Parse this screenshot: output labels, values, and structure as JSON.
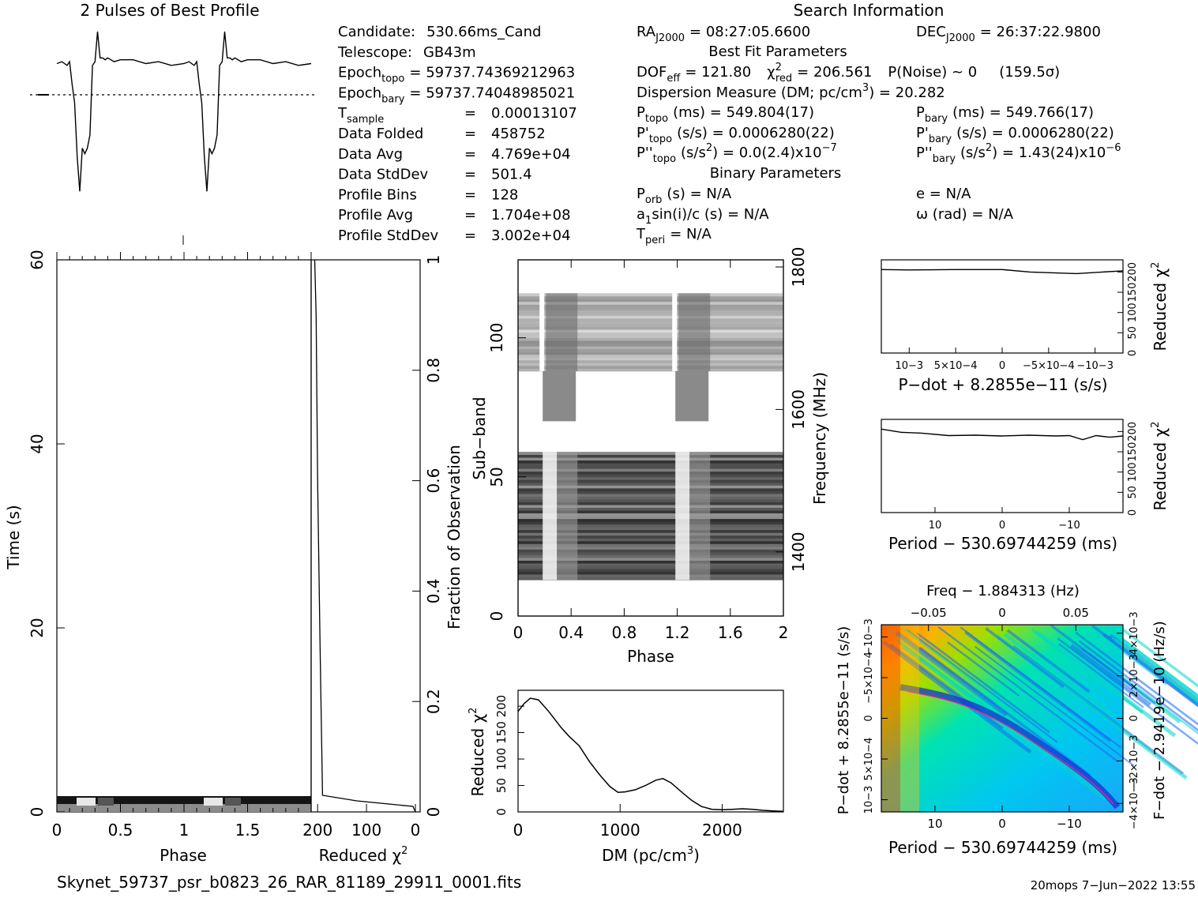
{
  "header": {
    "best_profile_title": "2 Pulses of Best Profile",
    "search_title": "Search Information"
  },
  "info_left": [
    {
      "label": "Candidate:",
      "value": "530.66ms_Cand"
    },
    {
      "label": "Telescope:",
      "value": "GB43m"
    },
    {
      "label": "Epoch",
      "sub": "topo",
      "value": "= 59737.74369212963"
    },
    {
      "label": "Epoch",
      "sub": "bary",
      "value": "= 59737.74048985021"
    },
    {
      "label": "T",
      "sub": "sample",
      "value": "0.00013107"
    },
    {
      "label": "Data Folded",
      "value": "458752"
    },
    {
      "label": "Data Avg",
      "value": "4.769e+04"
    },
    {
      "label": "Data StdDev",
      "value": "501.4"
    },
    {
      "label": "Profile Bins",
      "value": "128"
    },
    {
      "label": "Profile Avg",
      "value": "1.704e+08"
    },
    {
      "label": "Profile StdDev",
      "value": "3.002e+04"
    }
  ],
  "info_mid": {
    "ra": "RA",
    "ra_sub": "J2000",
    "ra_value": "= 08:27:05.6600",
    "best_fit_title": "Best Fit Parameters",
    "dof": "DOF",
    "dof_sub": "eff",
    "dof_value": "= 121.80",
    "chi": "χ",
    "chi_sub": "red",
    "chi_value": "= 206.561",
    "pnoise": "P(Noise) ~ 0",
    "sigma": "(159.5σ)",
    "dm_line": "Dispersion Measure (DM; pc/cm",
    "dm_value": ") = 20.282",
    "ptopo": "P",
    "ptopo_sub": "topo",
    "ptopo_value": "(ms) =  549.804(17)",
    "pdtopo": "P'",
    "pdtopo_value": "(s/s) =  0.0006280(22)",
    "pddtopo": "P''",
    "pddtopo_value": "(s/s",
    "pddtopo_value2": ") = 0.0(2.4)x10",
    "pddtopo_exp": "−7",
    "binary_title": "Binary Parameters",
    "porb": "P",
    "porb_sub": "orb",
    "porb_value": "(s) = N/A",
    "asini": "a",
    "asini_value": "sin(i)/c (s) = N/A",
    "tperi": "T",
    "tperi_sub": "peri",
    "tperi_value": "= N/A"
  },
  "info_right": {
    "dec": "DEC",
    "dec_sub": "J2000",
    "dec_value": "= 26:37:22.9800",
    "pbary": "P",
    "pbary_sub": "bary",
    "pbary_value": "(ms) =  549.766(17)",
    "pdbary": "P'",
    "pdbary_value": "(s/s) =  0.0006280(22)",
    "pddbary": "P''",
    "pddbary_value": "(s/s",
    "pddbary_value2": ") =  1.43(24)x10",
    "pddbary_exp": "−6",
    "ecc": "e = N/A",
    "omega": "ω (rad) = N/A"
  },
  "footer": {
    "filename": "Skynet_59737_psr_b0823_26_RAR_81189_29911_0001.fits",
    "stamp": "20mops  7−Jun−2022 13:55"
  },
  "chart_data": [
    {
      "type": "line",
      "name": "profile",
      "title": "2 Pulses of Best Profile",
      "x": [
        0,
        0.04,
        0.08,
        0.1,
        0.12,
        0.14,
        0.16,
        0.18,
        0.2,
        0.22,
        0.24,
        0.26,
        0.28,
        0.3,
        0.32,
        0.34,
        0.36,
        0.38,
        0.4,
        0.45,
        0.5,
        0.6,
        0.7,
        0.8,
        0.9,
        1.0,
        1.04,
        1.08,
        1.1,
        1.12,
        1.14,
        1.16,
        1.18,
        1.2,
        1.22,
        1.24,
        1.26,
        1.28,
        1.3,
        1.32,
        1.34,
        1.36,
        1.38,
        1.4,
        1.45,
        1.5,
        1.6,
        1.7,
        1.8,
        1.9,
        2.0
      ],
      "y": [
        0.83,
        0.84,
        0.82,
        0.84,
        0.72,
        0.62,
        0.33,
        0.15,
        0.38,
        0.35,
        0.38,
        0.45,
        0.82,
        0.84,
        1.0,
        0.86,
        0.86,
        0.85,
        0.86,
        0.84,
        0.85,
        0.85,
        0.83,
        0.84,
        0.82,
        0.83,
        0.84,
        0.82,
        0.84,
        0.72,
        0.62,
        0.33,
        0.15,
        0.38,
        0.35,
        0.38,
        0.45,
        0.82,
        0.84,
        1.0,
        0.86,
        0.86,
        0.85,
        0.86,
        0.84,
        0.85,
        0.85,
        0.83,
        0.84,
        0.82,
        0.83
      ]
    },
    {
      "type": "heatmap",
      "name": "time-phase",
      "xlabel": "Phase",
      "ylabel": "Time (s)",
      "xlim": [
        0,
        2
      ],
      "ylim": [
        0,
        60
      ],
      "x_ticks": [
        "0",
        "0.5",
        "1",
        "1.5"
      ],
      "y_ticks": [
        "0",
        "20",
        "40",
        "60"
      ]
    },
    {
      "type": "line",
      "name": "chi-vs-time",
      "xlabel": "Reduced χ",
      "xlabel_exp": "2",
      "ylabel": "Fraction of Observation",
      "x_ticks": [
        "200",
        "100",
        "0"
      ],
      "y_ticks": [
        "0",
        "0.2",
        "0.4",
        "0.6",
        "0.8",
        "1"
      ],
      "x": [
        0,
        5,
        120,
        190,
        195,
        200,
        203,
        206
      ],
      "y": [
        0,
        0.01,
        0.02,
        0.03,
        0.3,
        0.6,
        0.9,
        1.0
      ]
    },
    {
      "type": "heatmap",
      "name": "subband-phase",
      "xlabel": "Phase",
      "ylabel": "Sub−band",
      "y2label": "Frequency (MHz)",
      "xlim": [
        0,
        2
      ],
      "ylim": [
        0,
        128
      ],
      "x_ticks": [
        "0",
        "0.4",
        "0.8",
        "1.2",
        "1.6",
        "2"
      ],
      "y_ticks": [
        "0",
        "50",
        "100"
      ],
      "y2_ticks": [
        "1400",
        "1600",
        "1800"
      ]
    },
    {
      "type": "line",
      "name": "dm-chi",
      "xlabel": "DM (pc/cm",
      "xlabel_exp": "3",
      "xlabel_end": ")",
      "ylabel": "Reduced χ",
      "ylabel_exp": "2",
      "xlim": [
        0,
        2600
      ],
      "ylim": [
        0,
        230
      ],
      "x_ticks": [
        "0",
        "1000",
        "2000"
      ],
      "y_ticks": [
        "0",
        "50",
        "100",
        "150",
        "200"
      ],
      "x": [
        0,
        60,
        120,
        200,
        300,
        420,
        500,
        600,
        700,
        800,
        900,
        980,
        1050,
        1150,
        1250,
        1350,
        1420,
        1500,
        1600,
        1700,
        1800,
        1900,
        2000,
        2100,
        2200,
        2300,
        2400,
        2500,
        2600
      ],
      "y": [
        190,
        205,
        215,
        212,
        190,
        160,
        143,
        125,
        95,
        70,
        48,
        37,
        38,
        42,
        50,
        60,
        63,
        55,
        38,
        22,
        10,
        5,
        4,
        5,
        6,
        5,
        3,
        2,
        1
      ]
    },
    {
      "type": "line",
      "name": "pdot-chi",
      "xlabel": "P−dot + 8.2855e−11 (s/s)",
      "ylabel": "Reduced χ",
      "ylabel_exp": "2",
      "x_ticks": [
        "10−3",
        "5×10−4",
        "0",
        "−5×10−4",
        "−10−3"
      ],
      "y_ticks": [
        "0",
        "50",
        "100",
        "150",
        "200"
      ],
      "x": [
        0.0013,
        0.001,
        0.0005,
        0,
        -0.0003,
        -0.0008,
        -0.0013
      ],
      "y": [
        206,
        205,
        206,
        206,
        200,
        196,
        203
      ]
    },
    {
      "type": "line",
      "name": "period-chi",
      "xlabel": "Period − 530.69744259 (ms)",
      "ylabel": "Reduced χ",
      "ylabel_exp": "2",
      "x_ticks": [
        "10",
        "0",
        "−10"
      ],
      "y_ticks": [
        "0",
        "50",
        "100",
        "150",
        "200"
      ],
      "x": [
        18,
        15,
        12,
        8,
        4,
        0,
        -4,
        -8,
        -10,
        -12,
        -14,
        -16,
        -18
      ],
      "y": [
        206,
        198,
        196,
        190,
        191,
        189,
        191,
        189,
        190,
        180,
        190,
        186,
        189
      ]
    },
    {
      "type": "heatmap",
      "name": "period-pdot",
      "title": "Freq − 1.884313 (Hz)",
      "xlabel": "Period − 530.69744259 (ms)",
      "ylabel": "P−dot + 8.2855e−11 (s/s)",
      "y2label": "F−dot − 2.9419e−10 (Hz/s)",
      "x_ticks": [
        "10",
        "0",
        "−10"
      ],
      "x2_ticks": [
        "−0.05",
        "0",
        "0.05"
      ],
      "y_ticks": [
        "10−3",
        "5×10−4",
        "0",
        "−5×10−4",
        "−10−3"
      ],
      "y2_ticks": [
        "−4×10−3",
        "−2×10−3",
        "0",
        "2×10−3",
        "4×10−3"
      ]
    }
  ]
}
